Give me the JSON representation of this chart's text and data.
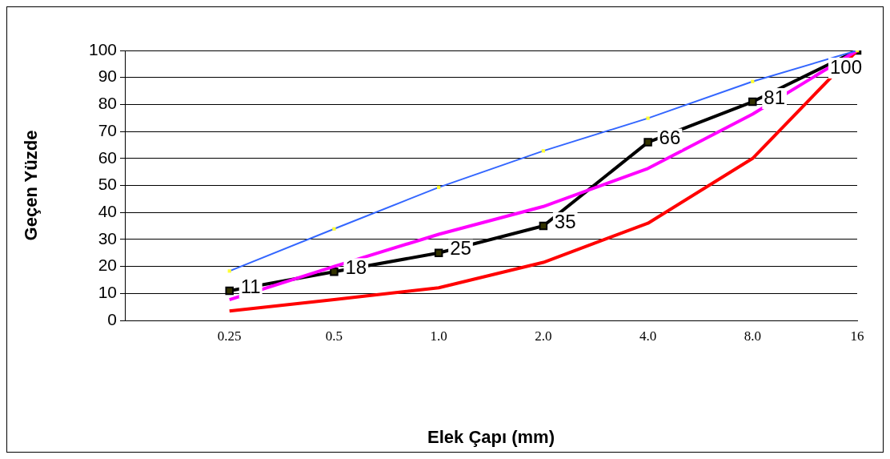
{
  "chart_data": {
    "type": "line",
    "xlabel": "Elek Çapı (mm)",
    "ylabel": "Geçen Yüzde",
    "categories": [
      null,
      "0.25",
      "0.5",
      "1.0",
      "2.0",
      "4.0",
      "8.0",
      "16"
    ],
    "series": [
      {
        "color": "#3366ff",
        "marker": "square",
        "values": [
          null,
          18.3,
          33.9,
          49.3,
          62.8,
          74.9,
          88.5,
          100
        ]
      },
      {
        "color": "#ff00ff",
        "marker": "none",
        "values": [
          null,
          7.7,
          20,
          31.9,
          42.2,
          56.3,
          76.4,
          100
        ]
      },
      {
        "color": "#ff0000",
        "marker": "none",
        "values": [
          null,
          3.5,
          7.7,
          12.1,
          21.5,
          36,
          60,
          100
        ]
      },
      {
        "color": "#000000",
        "marker": "square",
        "values": [
          null,
          11,
          18,
          25,
          35,
          66,
          81,
          100
        ],
        "value_labels": [
          null,
          "11",
          "18",
          "25",
          "35",
          "66",
          "81",
          "100"
        ]
      }
    ],
    "ylim": [
      0,
      100
    ],
    "yticks": [
      0,
      10,
      20,
      30,
      40,
      50,
      60,
      70,
      80,
      90,
      100
    ],
    "grid": "y",
    "legend": false
  }
}
